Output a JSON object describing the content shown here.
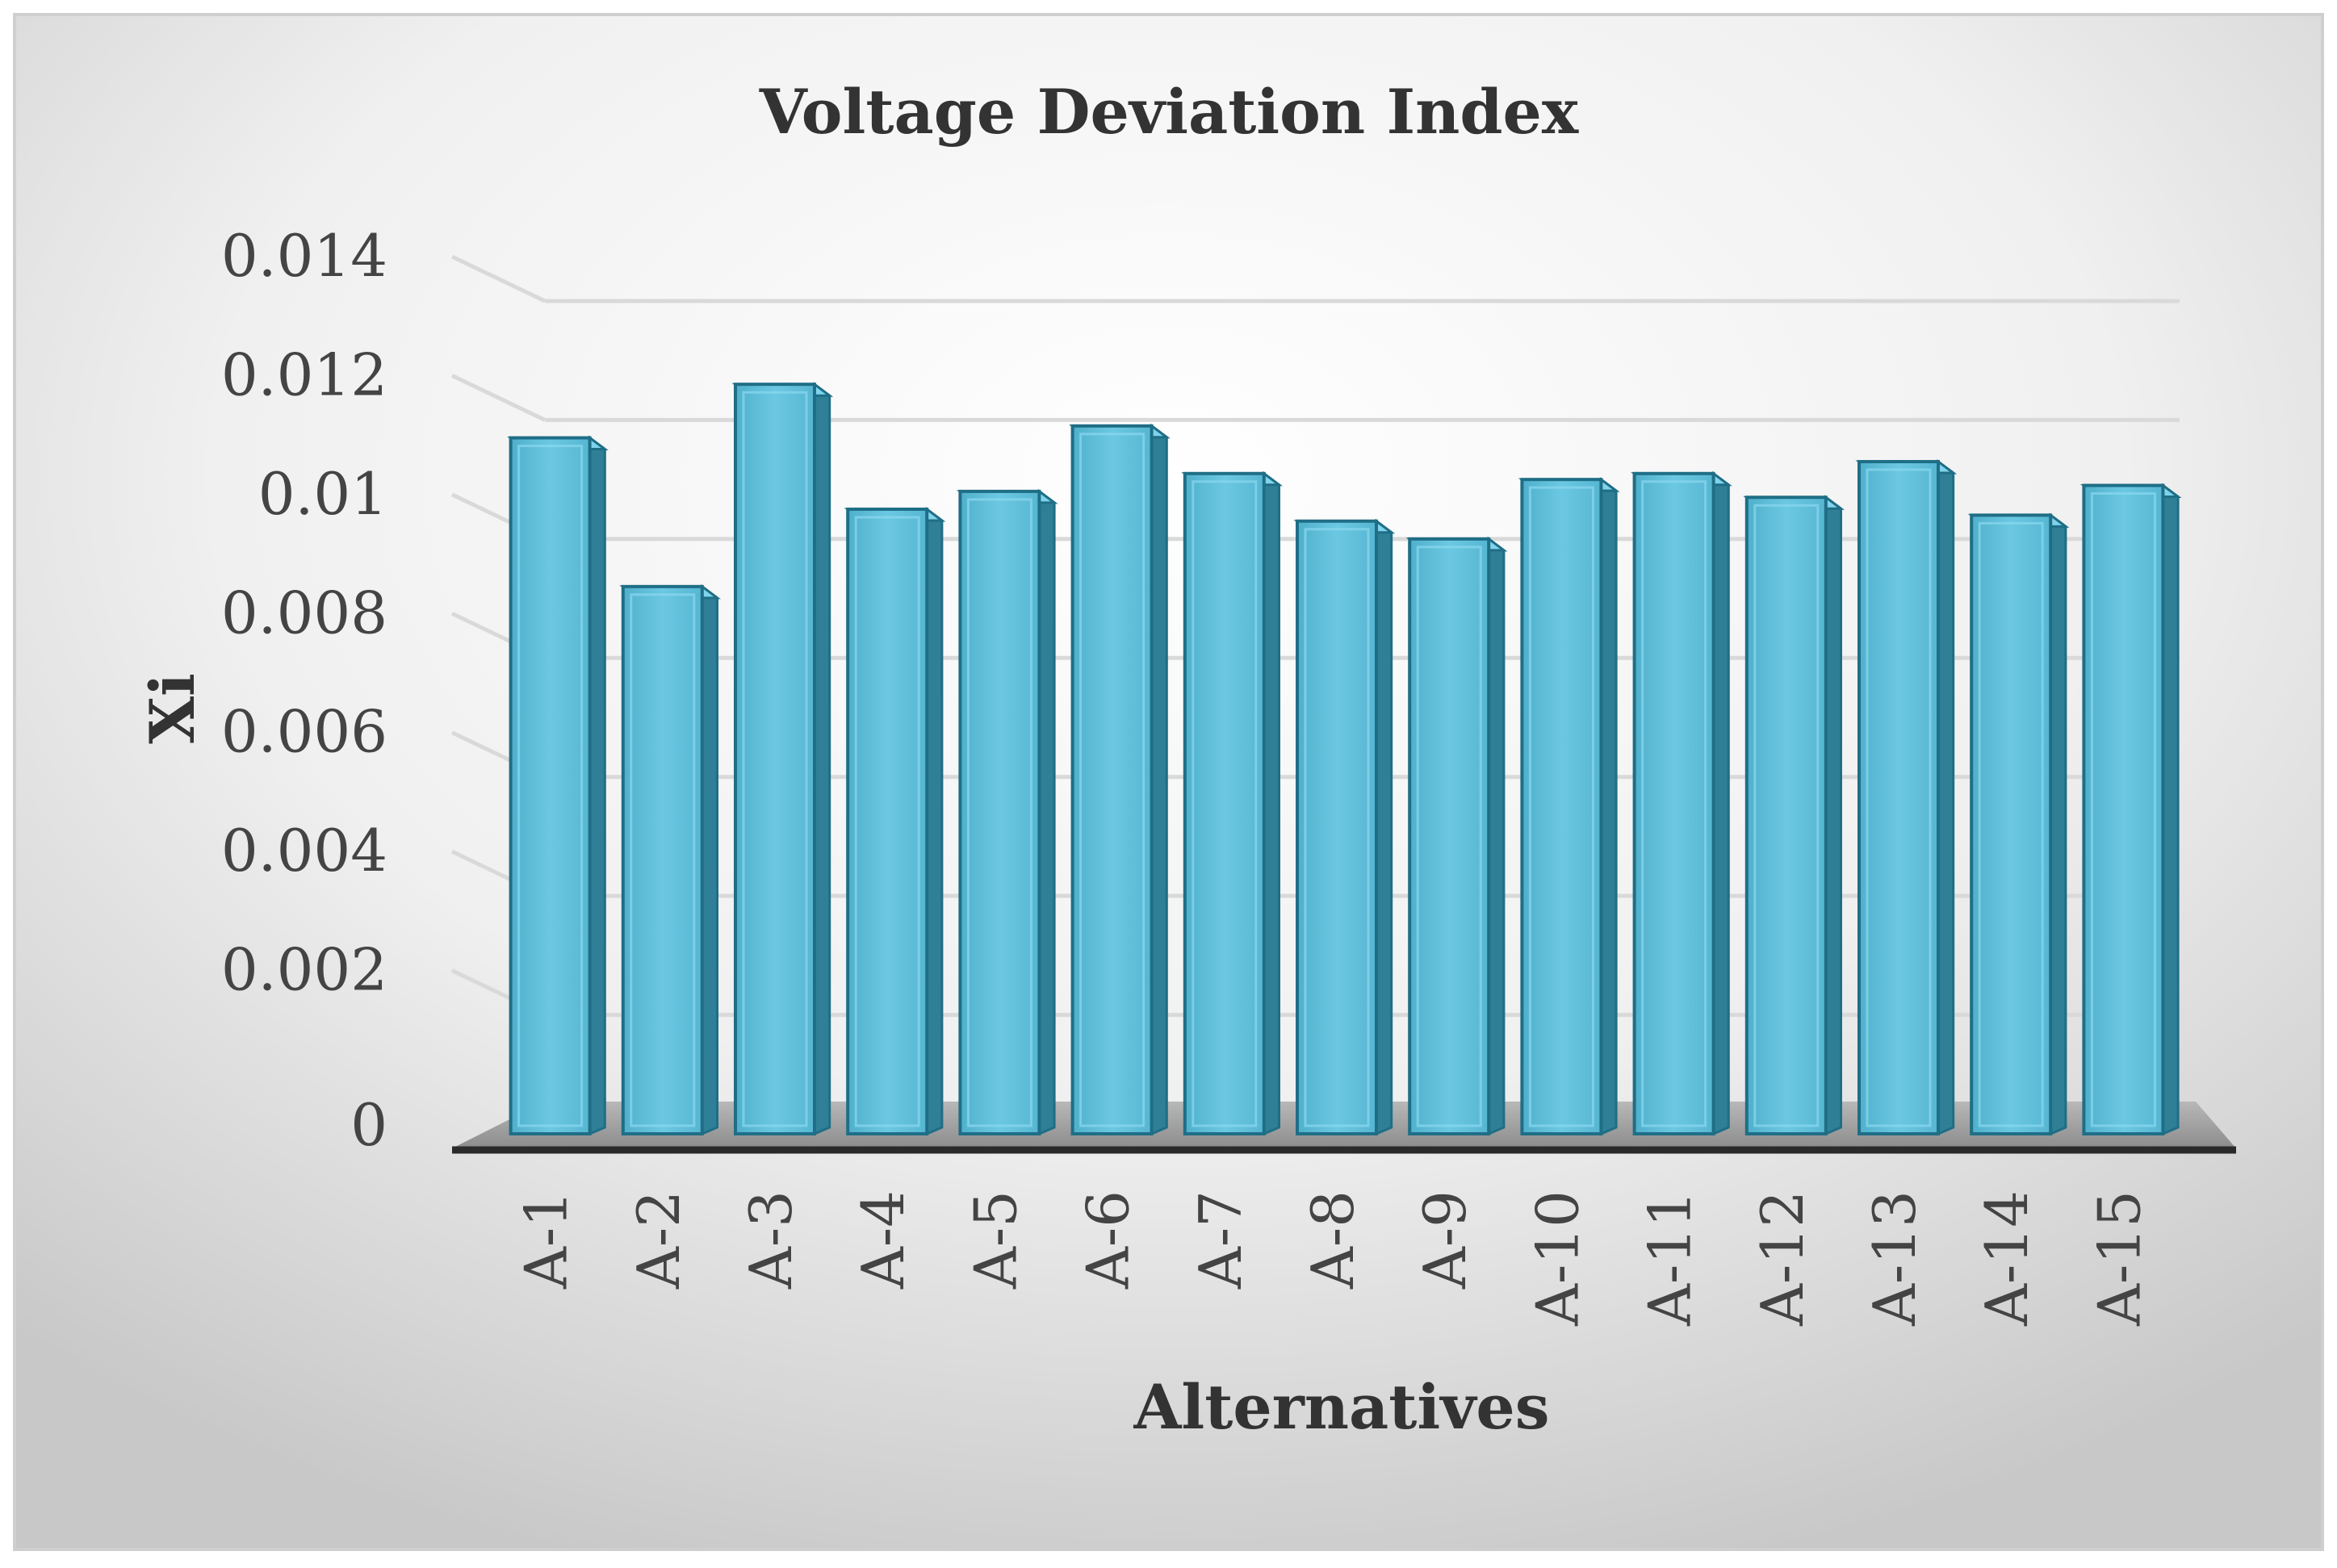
{
  "chart_data": {
    "type": "bar",
    "title": "Voltage Deviation Index",
    "xlabel": "Alternatives",
    "ylabel": "Xi",
    "categories": [
      "A-1",
      "A-2",
      "A-3",
      "A-4",
      "A-5",
      "A-6",
      "A-7",
      "A-8",
      "A-9",
      "A-10",
      "A-11",
      "A-12",
      "A-13",
      "A-14",
      "A-15"
    ],
    "values": [
      0.0117,
      0.0092,
      0.0126,
      0.0105,
      0.0108,
      0.0119,
      0.0111,
      0.0103,
      0.01,
      0.011,
      0.0111,
      0.0107,
      0.0113,
      0.0104,
      0.0109
    ],
    "yticks": [
      "0",
      "0.002",
      "0.004",
      "0.006",
      "0.008",
      "0.01",
      "0.012",
      "0.014"
    ],
    "ylim": [
      0,
      0.014
    ],
    "grid": true,
    "colors": {
      "bar_front": "#5bbcd8",
      "bar_side": "#2f7f96",
      "bar_edge": "#1f6e86",
      "gridline": "#d9d9d9",
      "floor": "#9a9a9a"
    }
  }
}
